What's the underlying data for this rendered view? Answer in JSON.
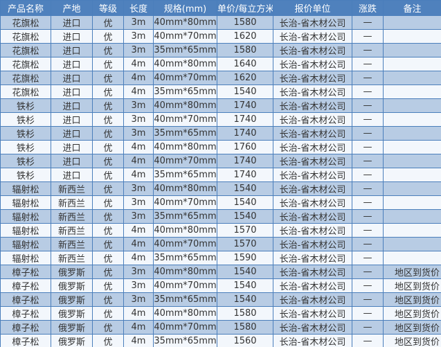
{
  "colors": {
    "header": "#4f81bd",
    "row_odd": "#b8cce4",
    "row_even": "#f3f7fc",
    "border": "#4a7ebb"
  },
  "table": {
    "headers": [
      "产品名称",
      "产地",
      "等级",
      "长度",
      "规格(mm)",
      "单价/每立方米",
      "报价单位",
      "涨跌",
      "备注"
    ],
    "rows": [
      [
        "花旗松",
        "进口",
        "优",
        "3m",
        "40mm*80mm",
        "1580",
        "长治-省木材公司",
        "—",
        ""
      ],
      [
        "花旗松",
        "进口",
        "优",
        "3m",
        "40mm*70mm",
        "1620",
        "长治-省木材公司",
        "—",
        ""
      ],
      [
        "花旗松",
        "进口",
        "优",
        "3m",
        "35mm*65mm",
        "1580",
        "长治-省木材公司",
        "—",
        ""
      ],
      [
        "花旗松",
        "进口",
        "优",
        "4m",
        "40mm*80mm",
        "1640",
        "长治-省木材公司",
        "—",
        ""
      ],
      [
        "花旗松",
        "进口",
        "优",
        "4m",
        "40mm*70mm",
        "1620",
        "长治-省木材公司",
        "—",
        ""
      ],
      [
        "花旗松",
        "进口",
        "优",
        "4m",
        "35mm*65mm",
        "1540",
        "长治-省木材公司",
        "—",
        ""
      ],
      [
        "铁杉",
        "进口",
        "优",
        "3m",
        "40mm*80mm",
        "1740",
        "长治-省木材公司",
        "—",
        ""
      ],
      [
        "铁杉",
        "进口",
        "优",
        "3m",
        "40mm*70mm",
        "1740",
        "长治-省木材公司",
        "—",
        ""
      ],
      [
        "铁杉",
        "进口",
        "优",
        "3m",
        "35mm*65mm",
        "1740",
        "长治-省木材公司",
        "—",
        ""
      ],
      [
        "铁杉",
        "进口",
        "优",
        "4m",
        "40mm*80mm",
        "1760",
        "长治-省木材公司",
        "—",
        ""
      ],
      [
        "铁杉",
        "进口",
        "优",
        "4m",
        "40mm*70mm",
        "1740",
        "长治-省木材公司",
        "—",
        ""
      ],
      [
        "铁杉",
        "进口",
        "优",
        "4m",
        "35mm*65mm",
        "1740",
        "长治-省木材公司",
        "—",
        ""
      ],
      [
        "辐射松",
        "新西兰",
        "优",
        "3m",
        "40mm*80mm",
        "1540",
        "长治-省木材公司",
        "—",
        ""
      ],
      [
        "辐射松",
        "新西兰",
        "优",
        "3m",
        "40mm*70mm",
        "1540",
        "长治-省木材公司",
        "—",
        ""
      ],
      [
        "辐射松",
        "新西兰",
        "优",
        "3m",
        "35mm*65mm",
        "1540",
        "长治-省木材公司",
        "—",
        ""
      ],
      [
        "辐射松",
        "新西兰",
        "优",
        "4m",
        "40mm*80mm",
        "1570",
        "长治-省木材公司",
        "—",
        ""
      ],
      [
        "辐射松",
        "新西兰",
        "优",
        "4m",
        "40mm*70mm",
        "1570",
        "长治-省木材公司",
        "—",
        ""
      ],
      [
        "辐射松",
        "新西兰",
        "优",
        "4m",
        "35mm*65mm",
        "1590",
        "长治-省木材公司",
        "—",
        ""
      ],
      [
        "樟子松",
        "俄罗斯",
        "优",
        "3m",
        "40mm*80mm",
        "1540",
        "长治-省木材公司",
        "—",
        "地区到货价"
      ],
      [
        "樟子松",
        "俄罗斯",
        "优",
        "3m",
        "40mm*70mm",
        "1540",
        "长治-省木材公司",
        "—",
        "地区到货价"
      ],
      [
        "樟子松",
        "俄罗斯",
        "优",
        "3m",
        "35mm*65mm",
        "1540",
        "长治-省木材公司",
        "—",
        "地区到货价"
      ],
      [
        "樟子松",
        "俄罗斯",
        "优",
        "4m",
        "40mm*80mm",
        "1580",
        "长治-省木材公司",
        "—",
        "地区到货价"
      ],
      [
        "樟子松",
        "俄罗斯",
        "优",
        "4m",
        "40mm*70mm",
        "1580",
        "长治-省木材公司",
        "—",
        "地区到货价"
      ],
      [
        "樟子松",
        "俄罗斯",
        "优",
        "4m",
        "35mm*65mm",
        "1560",
        "长治-省木材公司",
        "—",
        "地区到货价"
      ]
    ]
  }
}
